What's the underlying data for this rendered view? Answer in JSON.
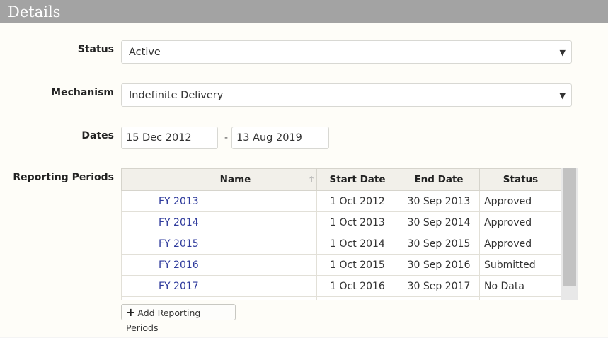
{
  "panel": {
    "title": "Details"
  },
  "status": {
    "label": "Status",
    "value": "Active"
  },
  "mechanism": {
    "label": "Mechanism",
    "value": "Indefinite Delivery"
  },
  "dates": {
    "label": "Dates",
    "start": "15 Dec 2012",
    "separator": "-",
    "end": "13 Aug 2019"
  },
  "reporting": {
    "label": "Reporting Periods",
    "columns": {
      "name": "Name",
      "start": "Start Date",
      "end": "End Date",
      "status": "Status"
    },
    "rows": [
      {
        "name": "FY 2013",
        "start": "1 Oct 2012",
        "end": "30 Sep 2013",
        "status": "Approved"
      },
      {
        "name": "FY 2014",
        "start": "1 Oct 2013",
        "end": "30 Sep 2014",
        "status": "Approved"
      },
      {
        "name": "FY 2015",
        "start": "1 Oct 2014",
        "end": "30 Sep 2015",
        "status": "Approved"
      },
      {
        "name": "FY 2016",
        "start": "1 Oct 2015",
        "end": "30 Sep 2016",
        "status": "Submitted"
      },
      {
        "name": "FY 2017",
        "start": "1 Oct 2016",
        "end": "30 Sep 2017",
        "status": "No Data"
      },
      {
        "name": "",
        "start": "",
        "end": "",
        "status": ""
      }
    ],
    "add_button": "Add Reporting Periods",
    "icons": {
      "sort": "sort-ascending-icon",
      "add": "plus-icon",
      "dropdown": "caret-down-icon"
    }
  }
}
